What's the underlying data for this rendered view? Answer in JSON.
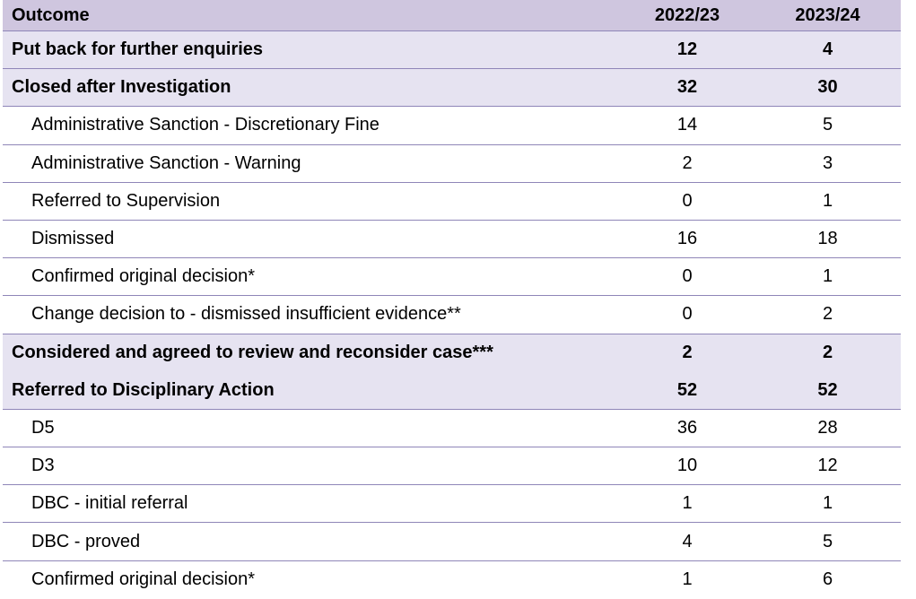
{
  "table": {
    "header": {
      "outcome": "Outcome",
      "col_a": "2022/23",
      "col_b": "2023/24"
    },
    "rows": [
      {
        "label": "Put back for further enquiries",
        "a": "12",
        "b": "4"
      },
      {
        "label": "Closed after Investigation",
        "a": "32",
        "b": "30"
      },
      {
        "label": "Administrative Sanction - Discretionary Fine",
        "a": "14",
        "b": "5"
      },
      {
        "label": "Administrative Sanction - Warning",
        "a": "2",
        "b": "3"
      },
      {
        "label": "Referred to Supervision",
        "a": "0",
        "b": "1"
      },
      {
        "label": "Dismissed",
        "a": "16",
        "b": "18"
      },
      {
        "label": "Confirmed original decision*",
        "a": "0",
        "b": "1"
      },
      {
        "label": "Change decision to - dismissed insufficient evidence**",
        "a": "0",
        "b": "2"
      },
      {
        "label": "Considered and agreed to review and reconsider case***",
        "a": "2",
        "b": "2"
      },
      {
        "label": "Referred to Disciplinary Action",
        "a": "52",
        "b": "52"
      },
      {
        "label": "D5",
        "a": "36",
        "b": "28"
      },
      {
        "label": "D3",
        "a": "10",
        "b": "12"
      },
      {
        "label": "DBC - initial referral",
        "a": "1",
        "b": "1"
      },
      {
        "label": "DBC - proved",
        "a": "4",
        "b": "5"
      },
      {
        "label": "Confirmed original decision*",
        "a": "1",
        "b": "6"
      }
    ]
  }
}
